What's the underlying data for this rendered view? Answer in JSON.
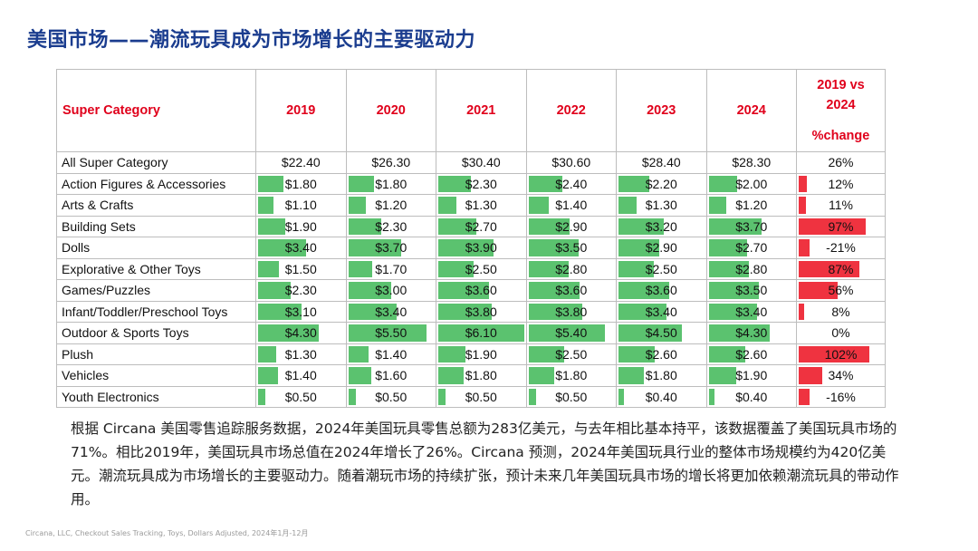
{
  "page": {
    "title": "美国市场——潮流玩具成为市场增长的主要驱动力",
    "description": "根据 Circana 美国零售追踪服务数据，2024年美国玩具零售总额为283亿美元，与去年相比基本持平，该数据覆盖了美国玩具市场的71%。相比2019年，美国玩具市场总值在2024年增长了26%。Circana 预测，2024年美国玩具行业的整体市场规模约为420亿美元。潮流玩具成为市场增长的主要驱动力。随着潮玩市场的持续扩张，预计未来几年美国玩具市场的增长将更加依赖潮流玩具的带动作用。",
    "source": "Circana, LLC, Checkout Sales Tracking, Toys, Dollars Adjusted, 2024年1月-12月"
  },
  "chart_data": {
    "type": "table",
    "header": {
      "category_label": "Super Category",
      "years": [
        "2019",
        "2020",
        "2021",
        "2022",
        "2023",
        "2024"
      ],
      "change_label_lines": [
        "2019 vs",
        "2024",
        "%change"
      ]
    },
    "bar_max_value": 6.1,
    "pct_max": 102,
    "rows": [
      {
        "name": "All Super Category",
        "values": [
          "$22.40",
          "$26.30",
          "$30.40",
          "$30.60",
          "$28.40",
          "$28.30"
        ],
        "nums": [
          null,
          null,
          null,
          null,
          null,
          null
        ],
        "change": "26%",
        "change_num": null
      },
      {
        "name": "Action Figures & Accessories",
        "values": [
          "$1.80",
          "$1.80",
          "$2.30",
          "$2.40",
          "$2.20",
          "$2.00"
        ],
        "nums": [
          1.8,
          1.8,
          2.3,
          2.4,
          2.2,
          2.0
        ],
        "change": "12%",
        "change_num": 12
      },
      {
        "name": "Arts & Crafts",
        "values": [
          "$1.10",
          "$1.20",
          "$1.30",
          "$1.40",
          "$1.30",
          "$1.20"
        ],
        "nums": [
          1.1,
          1.2,
          1.3,
          1.4,
          1.3,
          1.2
        ],
        "change": "11%",
        "change_num": 11
      },
      {
        "name": "Building Sets",
        "values": [
          "$1.90",
          "$2.30",
          "$2.70",
          "$2.90",
          "$3.20",
          "$3.70"
        ],
        "nums": [
          1.9,
          2.3,
          2.7,
          2.9,
          3.2,
          3.7
        ],
        "change": "97%",
        "change_num": 97
      },
      {
        "name": "Dolls",
        "values": [
          "$3.40",
          "$3.70",
          "$3.90",
          "$3.50",
          "$2.90",
          "$2.70"
        ],
        "nums": [
          3.4,
          3.7,
          3.9,
          3.5,
          2.9,
          2.7
        ],
        "change": "-21%",
        "change_num": -21
      },
      {
        "name": "Explorative & Other Toys",
        "values": [
          "$1.50",
          "$1.70",
          "$2.50",
          "$2.80",
          "$2.50",
          "$2.80"
        ],
        "nums": [
          1.5,
          1.7,
          2.5,
          2.8,
          2.5,
          2.8
        ],
        "change": "87%",
        "change_num": 87
      },
      {
        "name": "Games/Puzzles",
        "values": [
          "$2.30",
          "$3.00",
          "$3.60",
          "$3.60",
          "$3.60",
          "$3.50"
        ],
        "nums": [
          2.3,
          3.0,
          3.6,
          3.6,
          3.6,
          3.5
        ],
        "change": "56%",
        "change_num": 56
      },
      {
        "name": "Infant/Toddler/Preschool Toys",
        "values": [
          "$3.10",
          "$3.40",
          "$3.80",
          "$3.80",
          "$3.40",
          "$3.40"
        ],
        "nums": [
          3.1,
          3.4,
          3.8,
          3.8,
          3.4,
          3.4
        ],
        "change": "8%",
        "change_num": 8
      },
      {
        "name": "Outdoor & Sports Toys",
        "values": [
          "$4.30",
          "$5.50",
          "$6.10",
          "$5.40",
          "$4.50",
          "$4.30"
        ],
        "nums": [
          4.3,
          5.5,
          6.1,
          5.4,
          4.5,
          4.3
        ],
        "change": "0%",
        "change_num": 0
      },
      {
        "name": "Plush",
        "values": [
          "$1.30",
          "$1.40",
          "$1.90",
          "$2.50",
          "$2.60",
          "$2.60"
        ],
        "nums": [
          1.3,
          1.4,
          1.9,
          2.5,
          2.6,
          2.6
        ],
        "change": "102%",
        "change_num": 102
      },
      {
        "name": "Vehicles",
        "values": [
          "$1.40",
          "$1.60",
          "$1.80",
          "$1.80",
          "$1.80",
          "$1.90"
        ],
        "nums": [
          1.4,
          1.6,
          1.8,
          1.8,
          1.8,
          1.9
        ],
        "change": "34%",
        "change_num": 34
      },
      {
        "name": "Youth Electronics",
        "values": [
          "$0.50",
          "$0.50",
          "$0.50",
          "$0.50",
          "$0.40",
          "$0.40"
        ],
        "nums": [
          0.5,
          0.5,
          0.5,
          0.5,
          0.4,
          0.4
        ],
        "change": "-16%",
        "change_num": -16
      }
    ],
    "colors": {
      "bar": "#5bc26f",
      "change_bar": "#ef3340",
      "header_text": "#e0001b",
      "title_text": "#1b3d8f"
    }
  }
}
